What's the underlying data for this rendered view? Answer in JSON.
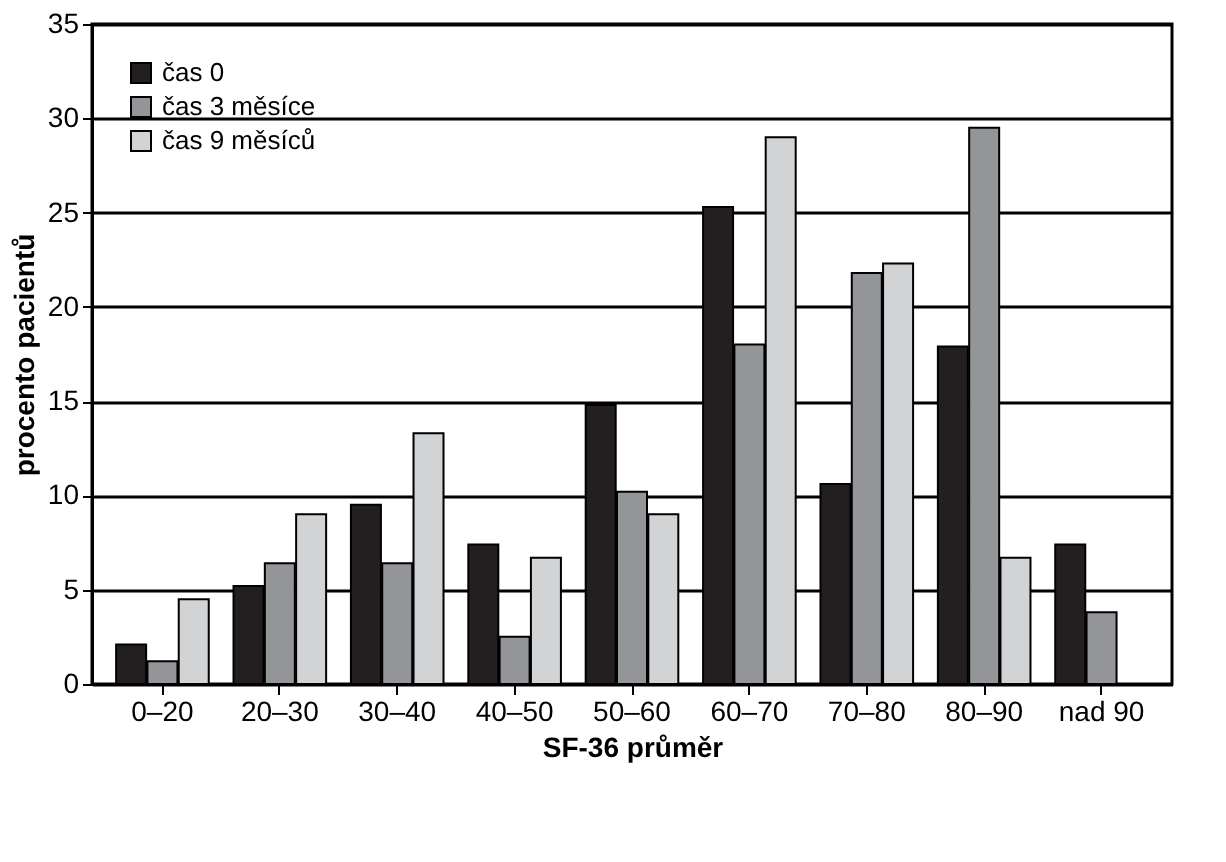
{
  "chart_data": {
    "type": "bar",
    "xlabel": "SF-36 průměr",
    "ylabel": "procento pacientů",
    "categories": [
      "0–20",
      "20–30",
      "30–40",
      "40–50",
      "50–60",
      "60–70",
      "70–80",
      "80–90",
      "nad 90"
    ],
    "series": [
      {
        "name": "čas 0",
        "color": "#231f20",
        "values": [
          2.1,
          5.2,
          9.5,
          7.4,
          14.8,
          25.3,
          10.6,
          17.9,
          7.4
        ]
      },
      {
        "name": "čas 3 měsíce",
        "color": "#939598",
        "values": [
          1.2,
          6.4,
          6.4,
          2.5,
          10.2,
          18.0,
          21.8,
          29.5,
          3.8
        ]
      },
      {
        "name": "čas 9 měsíců",
        "color": "#d1d3d4",
        "values": [
          4.5,
          9.0,
          13.3,
          6.7,
          9.0,
          29.0,
          22.3,
          6.7,
          null
        ]
      }
    ],
    "ylim": [
      0,
      35
    ],
    "yticks": [
      0,
      5,
      10,
      15,
      20,
      25,
      30,
      35
    ],
    "grid": "y",
    "legend": "top left"
  }
}
